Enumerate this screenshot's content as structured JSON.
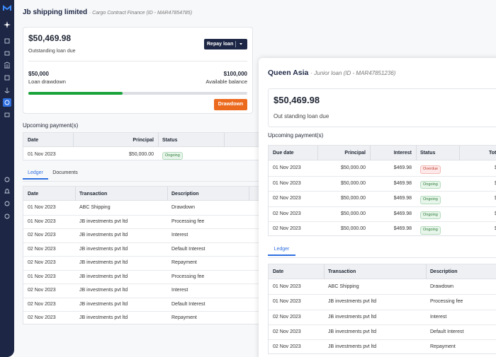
{
  "main": {
    "title": "Jb shipping limited",
    "subtitle": "· Cargo Contract Finance (ID - MAR47854785)",
    "amount": "$50,469.98",
    "amount_label": "Outstanding loan due",
    "repay_button": "Repay loan",
    "drawdown": "$50,000",
    "drawdown_label": "Loan drawdown",
    "balance": "$100,000",
    "balance_label": "Available balance",
    "drawdown_button": "Drawdown",
    "payments_title": "Upcoming payment(s)",
    "payments": {
      "columns": [
        "Date",
        "Principal",
        "Status"
      ],
      "rows": [
        [
          "01 Nov 2023",
          "$50,000.00",
          "Ongoing"
        ]
      ]
    },
    "tabs": [
      "Ledger",
      "Documents"
    ],
    "ledger": {
      "columns": [
        "Date",
        "Transaction",
        "Description"
      ],
      "rows": [
        [
          "01 Nov 2023",
          "ABC Shipping",
          "Drawdown"
        ],
        [
          "01 Nov 2023",
          "JB investments pvt ltd",
          "Processing fee"
        ],
        [
          "02 Nov 2023",
          "JB investments pvt ltd",
          "Interest"
        ],
        [
          "02 Nov 2023",
          "JB investments pvt ltd",
          "Default Interest"
        ],
        [
          "02 Nov 2023",
          "JB investments pvt ltd",
          "Repayment"
        ],
        [
          "01 Nov 2023",
          "JB investments pvt ltd",
          "Processing fee"
        ],
        [
          "02 Nov 2023",
          "JB investments pvt ltd",
          "Interest"
        ],
        [
          "02 Nov 2023",
          "JB investments pvt ltd",
          "Default Interest"
        ],
        [
          "02 Nov 2023",
          "JB investments pvt ltd",
          "Repayment"
        ]
      ]
    }
  },
  "detail": {
    "title": "Queen Asia",
    "subtitle": "· Junior loan (ID - MAR47851236)",
    "amount": "$50,469.98",
    "amount_label": "Out standing loan due",
    "payments_title": "Upcoming payment(s)",
    "payments": {
      "columns": [
        "Due date",
        "Principal",
        "Interest",
        "Status",
        "Tot"
      ],
      "rows": [
        [
          "01 Nov 2023",
          "$50,000.00",
          "$469.98",
          "Overdue",
          "$"
        ],
        [
          "01 Nov 2023",
          "$50,000.00",
          "$469.98",
          "Ongoing",
          "$"
        ],
        [
          "02 Nov 2023",
          "$50,000.00",
          "$469.98",
          "Ongoing",
          "$"
        ],
        [
          "02 Nov 2023",
          "$50,000.00",
          "$469.98",
          "Ongoing",
          "$"
        ],
        [
          "02 Nov 2023",
          "$50,000.00",
          "$469.98",
          "Ongoing",
          "$"
        ]
      ]
    },
    "tabs": [
      "Ledger"
    ],
    "ledger": {
      "columns": [
        "Date",
        "Transaction",
        "Description"
      ],
      "rows": [
        [
          "01 Nov 2023",
          "ABC Shipping",
          "Drawdown"
        ],
        [
          "01 Nov 2023",
          "JB investments pvt ltd",
          "Processing fee"
        ],
        [
          "02 Nov 2023",
          "JB investments pvt ltd",
          "Interest"
        ],
        [
          "02 Nov 2023",
          "JB investments pvt ltd",
          "Default Interest"
        ],
        [
          "02 Nov 2023",
          "JB investments pvt ltd",
          "Repayment"
        ]
      ]
    }
  }
}
